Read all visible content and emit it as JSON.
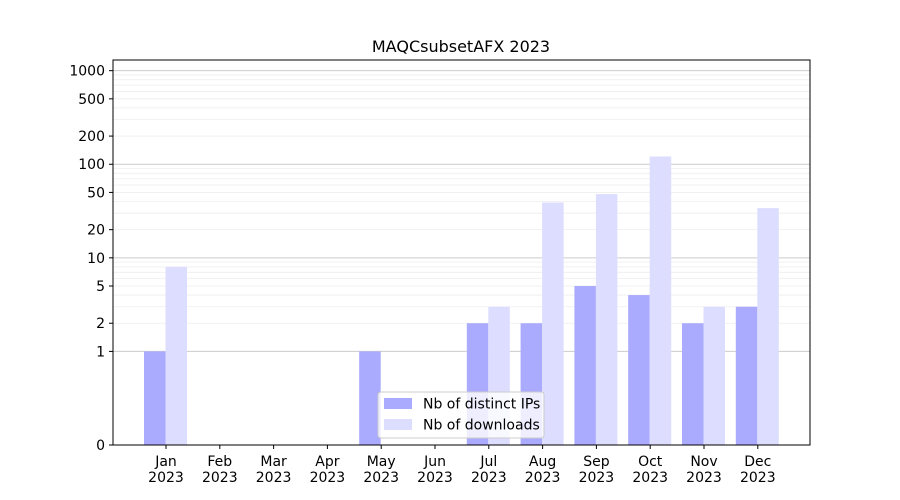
{
  "chart_data": {
    "type": "bar",
    "title": "MAQCsubsetAFX 2023",
    "xlabel": "",
    "ylabel": "",
    "yscale": "symlog",
    "ylim": [
      0,
      1300
    ],
    "yticks": [
      0,
      1,
      2,
      5,
      10,
      20,
      50,
      100,
      200,
      500,
      1000
    ],
    "ytick_labels": [
      "0",
      "1",
      "2",
      "5",
      "10",
      "20",
      "50",
      "100",
      "200",
      "500",
      "1000"
    ],
    "categories": [
      "Jan\n2023",
      "Feb\n2023",
      "Mar\n2023",
      "Apr\n2023",
      "May\n2023",
      "Jun\n2023",
      "Jul\n2023",
      "Aug\n2023",
      "Sep\n2023",
      "Oct\n2023",
      "Nov\n2023",
      "Dec\n2023"
    ],
    "series": [
      {
        "name": "Nb of distinct IPs",
        "color": "#aaaaff",
        "values": [
          1,
          0,
          0,
          0,
          1,
          0,
          2,
          2,
          5,
          4,
          2,
          3
        ]
      },
      {
        "name": "Nb of downloads",
        "color": "#ddddff",
        "values": [
          8,
          0,
          0,
          0,
          0,
          0,
          3,
          39,
          48,
          121,
          3,
          34
        ]
      }
    ],
    "grid": true,
    "legend": "lower-center"
  }
}
